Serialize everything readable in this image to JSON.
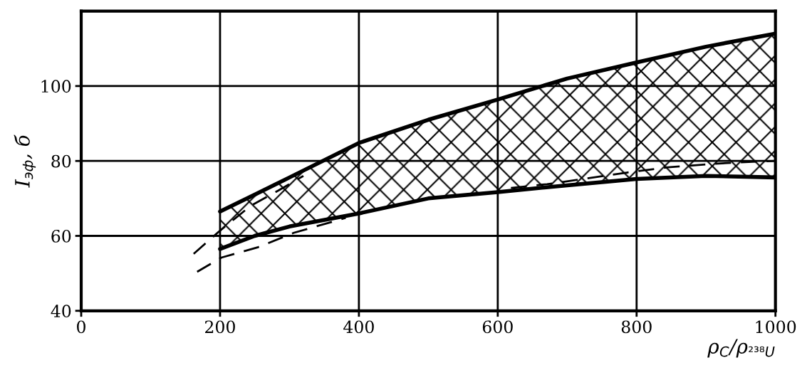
{
  "chart_data": {
    "type": "line",
    "ylabel": "I$_{эф}$, б",
    "xlabel": "ρ$_{C}$/ρ$_{²³⁸U}$",
    "xlim": [
      0,
      1000
    ],
    "xticks": [
      0,
      200,
      400,
      600,
      800,
      1000
    ],
    "ylim": [
      40,
      120
    ],
    "yticks": [
      40,
      60,
      80,
      100
    ],
    "grid": true,
    "legend": false,
    "series": [
      {
        "color": "#000000",
        "line_style": "solid",
        "x": [
          200,
          250,
          300,
          400,
          500,
          600,
          700,
          800,
          900,
          1000
        ],
        "values": [
          56.5,
          60,
          62.5,
          66,
          70,
          71.7,
          73.5,
          75.2,
          76,
          75.6
        ],
        "upper": [
          66.5,
          71,
          75.6,
          84.8,
          91,
          96.4,
          102,
          106.3,
          110.5,
          114
        ],
        "lower": [
          56.5,
          60,
          62.5,
          66,
          70,
          71.7,
          73.5,
          75.2,
          76,
          75.6
        ]
      },
      {
        "color": "#000000",
        "line_style": "solid",
        "x": [
          200,
          250,
          300,
          400,
          500,
          600,
          700,
          800,
          900,
          1000
        ],
        "values": [
          66.5,
          71,
          75.6,
          84.8,
          91,
          96.4,
          102,
          106.3,
          110.5,
          114
        ]
      },
      {
        "color": "#000000",
        "line_style": "dashed",
        "x": [
          167,
          202,
          255,
          306,
          381
        ],
        "values": [
          50.4,
          54.2,
          57,
          60.8,
          64.8
        ]
      },
      {
        "color": "#000000",
        "line_style": "dashed",
        "x": [
          162,
          198,
          244,
          284,
          320
        ],
        "values": [
          55.2,
          61.1,
          68,
          72.1,
          76
        ]
      },
      {
        "color": "#000000",
        "line_style": "dashed",
        "x": [
          619,
          671,
          786,
          845,
          908,
          967,
          1000
        ],
        "values": [
          72.8,
          73.8,
          76.9,
          78.3,
          79.2,
          79.8,
          80
        ]
      }
    ]
  }
}
